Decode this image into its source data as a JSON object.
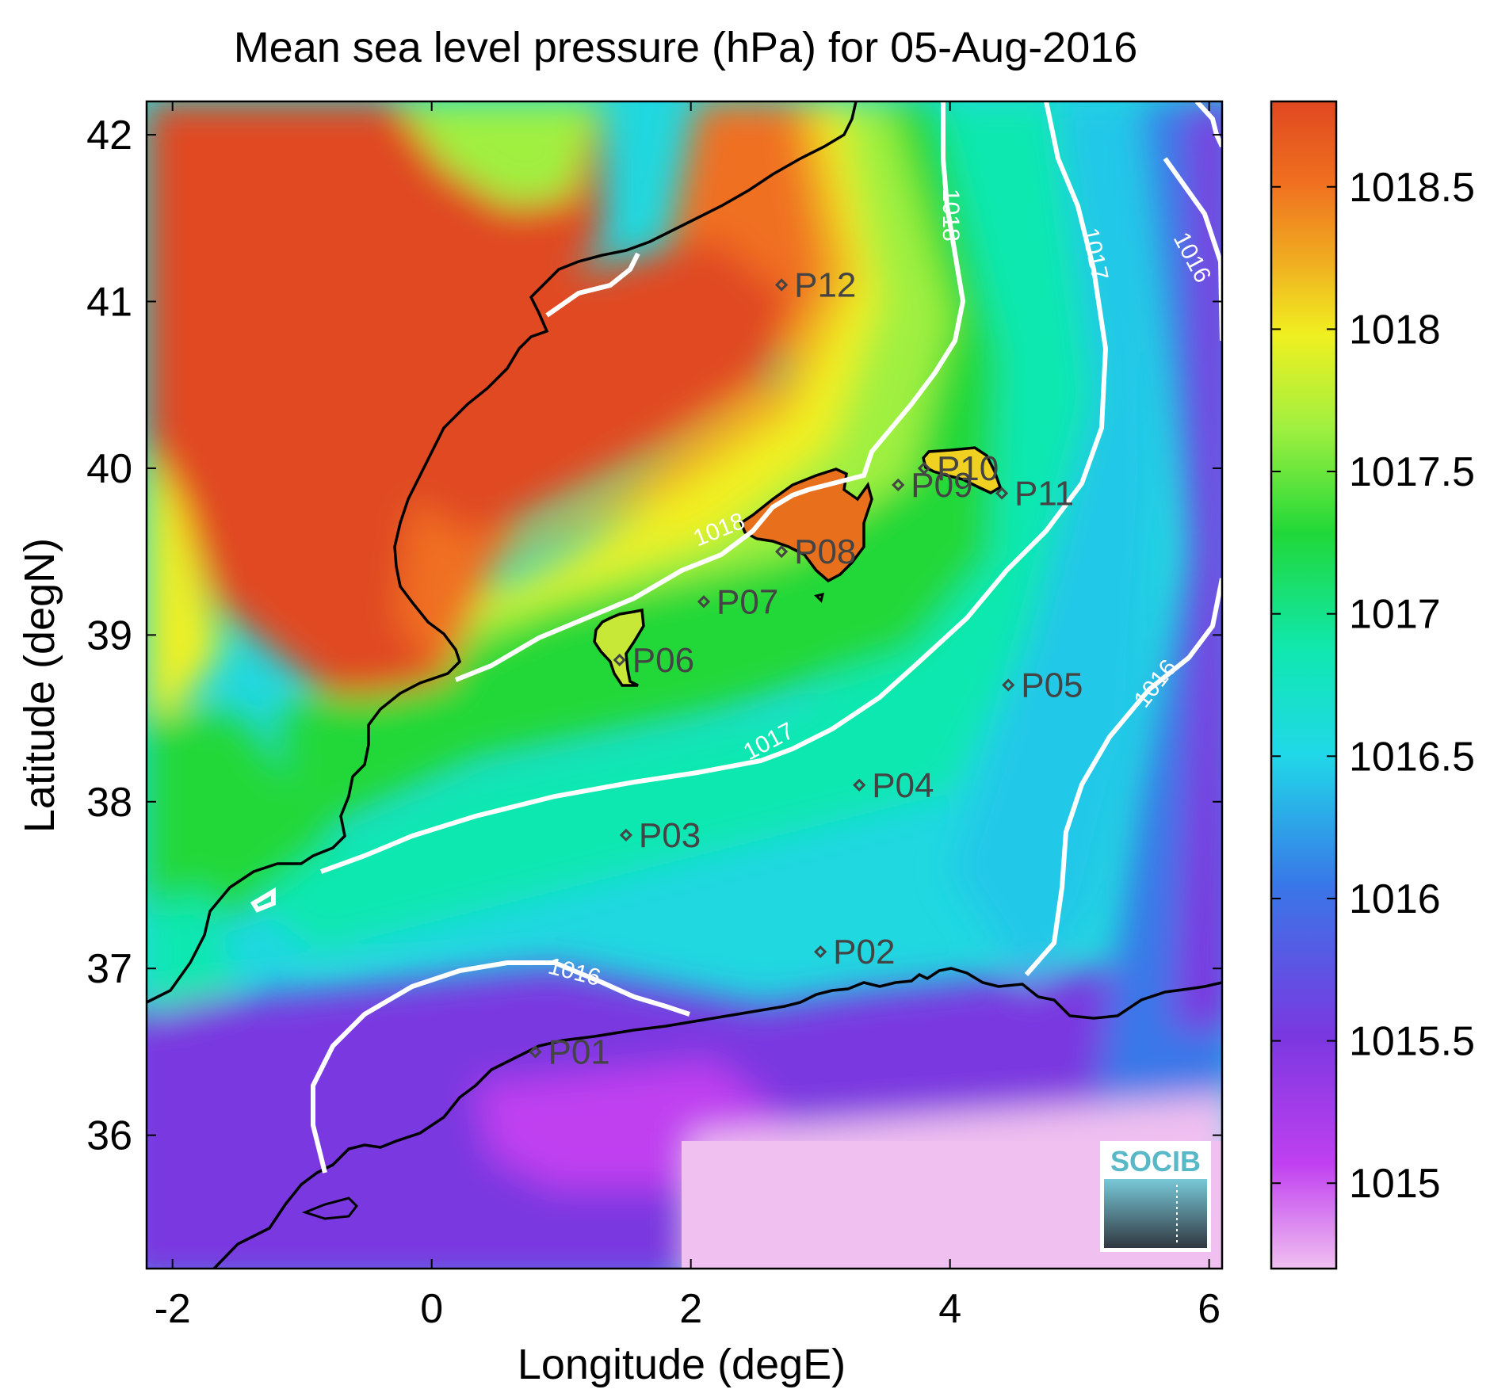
{
  "title": "Mean sea level pressure (hPa) for 05-Aug-2016",
  "xlabel": "Longitude (degE)",
  "ylabel": "Latitude (degN)",
  "x_ticks": [
    "-2",
    "0",
    "2",
    "4",
    "6"
  ],
  "y_ticks": [
    "36",
    "37",
    "38",
    "39",
    "40",
    "41",
    "42"
  ],
  "colorbar_ticks": [
    "1015",
    "1015.5",
    "1016",
    "1016.5",
    "1017",
    "1017.5",
    "1018",
    "1018.5"
  ],
  "logo_text": "SOCIB",
  "chart_data": {
    "type": "heatmap",
    "title": "Mean sea level pressure (hPa) for 05-Aug-2016",
    "xlabel": "Longitude (degE)",
    "ylabel": "Latitude (degN)",
    "xlim": [
      -2.2,
      6.1
    ],
    "ylim": [
      35.2,
      42.2
    ],
    "clim": [
      1014.7,
      1018.8
    ],
    "colormap": [
      "#f0c0f0",
      "#c040f0",
      "#7a38e0",
      "#3878e8",
      "#20c8e8",
      "#10e8b0",
      "#20d838",
      "#a0f040",
      "#f0f020",
      "#f0b020",
      "#f07020",
      "#e04820"
    ],
    "contour_levels": [
      {
        "value": 1016,
        "label": "1016"
      },
      {
        "value": 1017,
        "label": "1017"
      },
      {
        "value": 1018,
        "label": "1018"
      }
    ],
    "stations": [
      {
        "name": "P01",
        "lon": 0.8,
        "lat": 36.5
      },
      {
        "name": "P02",
        "lon": 3.0,
        "lat": 37.1
      },
      {
        "name": "P03",
        "lon": 1.5,
        "lat": 37.8
      },
      {
        "name": "P04",
        "lon": 3.3,
        "lat": 38.1
      },
      {
        "name": "P05",
        "lon": 4.45,
        "lat": 38.7
      },
      {
        "name": "P06",
        "lon": 1.45,
        "lat": 38.85
      },
      {
        "name": "P07",
        "lon": 2.1,
        "lat": 39.2
      },
      {
        "name": "P08",
        "lon": 2.7,
        "lat": 39.5
      },
      {
        "name": "P09",
        "lon": 3.6,
        "lat": 39.9
      },
      {
        "name": "P10",
        "lon": 3.8,
        "lat": 40.0
      },
      {
        "name": "P11",
        "lon": 4.4,
        "lat": 39.85
      },
      {
        "name": "P12",
        "lon": 2.7,
        "lat": 41.1
      }
    ]
  }
}
